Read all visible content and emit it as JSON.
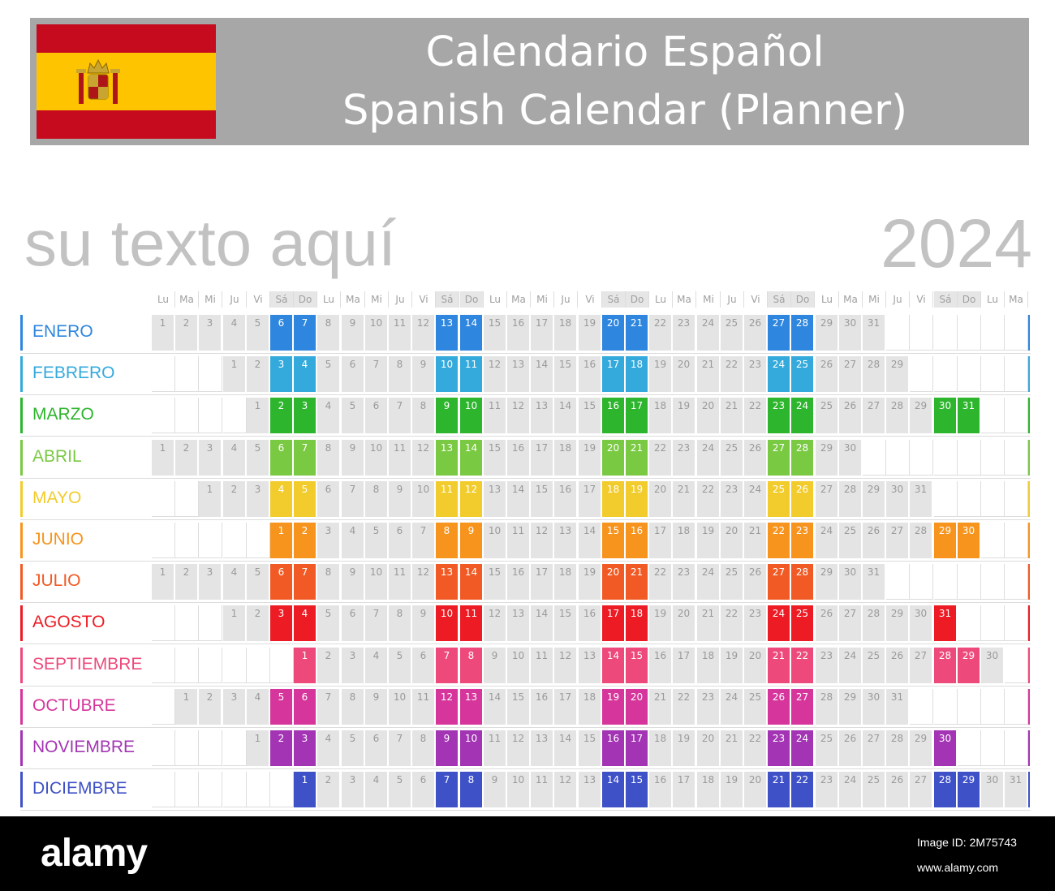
{
  "header": {
    "title_line1": "Calendario Español",
    "title_line2": "Spanish Calendar (Planner)",
    "flag": {
      "name": "spain-flag",
      "red": "#c60b1e",
      "yellow": "#ffc400"
    }
  },
  "placeholder": "su texto aquí",
  "year": "2024",
  "weekday_headers": [
    "Lu",
    "Ma",
    "Mi",
    "Ju",
    "Vi",
    "Sá",
    "Do",
    "Lu",
    "Ma",
    "Mi",
    "Ju",
    "Vi",
    "Sá",
    "Do",
    "Lu",
    "Ma",
    "Mi",
    "Ju",
    "Vi",
    "Sá",
    "Do",
    "Lu",
    "Ma",
    "Mi",
    "Ju",
    "Vi",
    "Sá",
    "Do",
    "Lu",
    "Ma",
    "Mi",
    "Ju",
    "Vi",
    "Sá",
    "Do",
    "Lu",
    "Ma"
  ],
  "months": [
    {
      "name": "ENERO",
      "start_offset": 0,
      "days": 31,
      "color": "#2e86de"
    },
    {
      "name": "FEBRERO",
      "start_offset": 3,
      "days": 29,
      "color": "#34aadc"
    },
    {
      "name": "MARZO",
      "start_offset": 4,
      "days": 31,
      "color": "#2db52d"
    },
    {
      "name": "ABRIL",
      "start_offset": 0,
      "days": 30,
      "color": "#7ac943"
    },
    {
      "name": "MAYO",
      "start_offset": 2,
      "days": 31,
      "color": "#f2cc2c"
    },
    {
      "name": "JUNIO",
      "start_offset": 5,
      "days": 30,
      "color": "#f7941d"
    },
    {
      "name": "JULIO",
      "start_offset": 0,
      "days": 31,
      "color": "#f15a24"
    },
    {
      "name": "AGOSTO",
      "start_offset": 3,
      "days": 31,
      "color": "#ed1c24"
    },
    {
      "name": "SEPTIEMBRE",
      "start_offset": 6,
      "days": 30,
      "color": "#ed4a7b"
    },
    {
      "name": "OCTUBRE",
      "start_offset": 1,
      "days": 31,
      "color": "#d6369b"
    },
    {
      "name": "NOVIEMBRE",
      "start_offset": 4,
      "days": 30,
      "color": "#a335b4"
    },
    {
      "name": "DICIEMBRE",
      "start_offset": 6,
      "days": 31,
      "color": "#3f51c7"
    }
  ],
  "footer": {
    "brand": "alamy",
    "image_id": "Image ID: 2M75743",
    "url": "www.alamy.com"
  }
}
